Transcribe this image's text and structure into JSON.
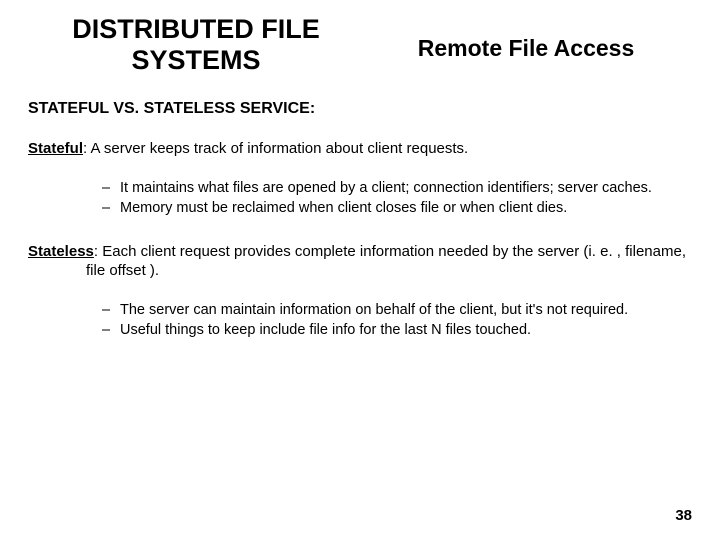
{
  "header": {
    "title_left_line1": "DISTRIBUTED FILE",
    "title_left_line2": "SYSTEMS",
    "title_right": "Remote File Access"
  },
  "section_heading": "STATEFUL VS. STATELESS SERVICE:",
  "stateful": {
    "term": "Stateful",
    "colon": ":",
    "desc": "  A server keeps track of information about client requests.",
    "bullets": [
      "It maintains what files are opened by a client; connection identifiers; server caches.",
      "Memory must be reclaimed when client closes file or when client dies."
    ]
  },
  "stateless": {
    "term": "Stateless",
    "colon": ":",
    "desc": " Each client request provides complete information needed by the server (i. e. , filename, file offset ).",
    "bullets": [
      "The server can maintain information on behalf of the client, but it's not required.",
      "Useful things to keep include file info for the last N files touched."
    ]
  },
  "page_number": "38",
  "colors": {
    "background": "#ffffff",
    "text": "#000000"
  },
  "typography": {
    "title_fontsize": 27,
    "subtitle_fontsize": 23,
    "section_fontsize": 16,
    "body_fontsize": 15,
    "bullet_fontsize": 14.5,
    "pagenum_fontsize": 15
  }
}
